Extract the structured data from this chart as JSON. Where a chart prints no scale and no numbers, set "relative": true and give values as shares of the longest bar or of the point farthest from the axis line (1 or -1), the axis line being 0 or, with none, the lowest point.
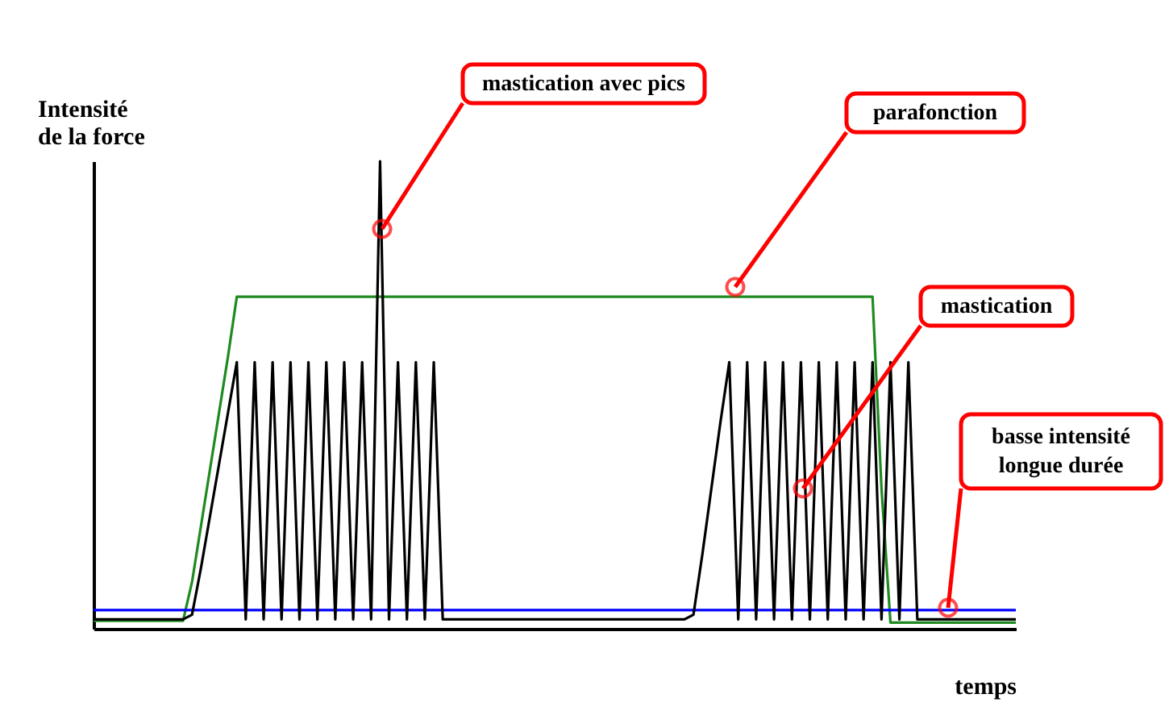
{
  "chart_data": {
    "type": "line",
    "relative": true,
    "xlabel": "temps",
    "ylabel": "Intensité de la force",
    "categories": [
      null,
      null,
      null,
      null,
      null,
      null,
      null,
      null,
      null,
      null,
      null,
      null,
      null,
      null,
      null,
      null,
      null,
      null,
      null,
      null,
      null,
      null,
      null,
      null,
      null,
      null,
      null,
      null,
      null,
      null,
      null,
      null,
      null,
      null,
      null,
      null,
      null,
      null,
      null,
      null,
      null,
      null,
      null,
      null,
      null,
      null,
      null,
      null,
      null,
      null,
      null,
      null,
      null,
      null,
      null,
      null,
      null,
      null,
      null,
      null,
      null,
      null,
      null,
      null,
      null,
      null,
      null,
      null,
      null,
      null,
      null,
      null,
      null,
      null,
      null,
      null,
      null,
      null,
      null,
      null,
      null,
      null,
      null,
      null,
      null,
      null,
      null,
      null,
      null,
      null,
      null,
      null,
      null,
      null,
      null,
      null,
      null,
      null,
      null,
      null,
      null,
      null,
      null,
      null
    ],
    "series": [
      {
        "color": "#1f8a1f",
        "values": [
          0.017,
          0.017,
          0.017,
          0.017,
          0.017,
          0.017,
          0.017,
          0.017,
          0.017,
          0.017,
          0.017,
          0.1,
          0.22,
          0.34,
          0.46,
          0.58,
          0.71,
          0.71,
          0.71,
          0.71,
          0.71,
          0.71,
          0.71,
          0.71,
          0.71,
          0.71,
          0.71,
          0.71,
          0.71,
          0.71,
          0.71,
          0.71,
          0.71,
          0.71,
          0.71,
          0.71,
          0.71,
          0.71,
          0.71,
          0.71,
          0.71,
          0.71,
          0.71,
          0.71,
          0.71,
          0.71,
          0.71,
          0.71,
          0.71,
          0.71,
          0.71,
          0.71,
          0.71,
          0.71,
          0.71,
          0.71,
          0.71,
          0.71,
          0.71,
          0.71,
          0.71,
          0.71,
          0.71,
          0.71,
          0.71,
          0.71,
          0.71,
          0.71,
          0.71,
          0.71,
          0.71,
          0.71,
          0.71,
          0.71,
          0.71,
          0.71,
          0.71,
          0.71,
          0.71,
          0.71,
          0.71,
          0.71,
          0.71,
          0.71,
          0.71,
          0.71,
          0.71,
          0.71,
          0.3,
          0.013,
          0.013,
          0.013,
          0.013,
          0.013,
          0.013,
          0.013,
          0.013,
          0.013,
          0.013,
          0.013,
          0.013,
          0.013,
          0.013,
          0.013
        ]
      },
      {
        "color": "#0000ff",
        "values": [
          0.04,
          0.04,
          0.04,
          0.04,
          0.04,
          0.04,
          0.04,
          0.04,
          0.04,
          0.04,
          0.04,
          0.04,
          0.04,
          0.04,
          0.04,
          0.04,
          0.04,
          0.04,
          0.04,
          0.04,
          0.04,
          0.04,
          0.04,
          0.04,
          0.04,
          0.04,
          0.04,
          0.04,
          0.04,
          0.04,
          0.04,
          0.04,
          0.04,
          0.04,
          0.04,
          0.04,
          0.04,
          0.04,
          0.04,
          0.04,
          0.04,
          0.04,
          0.04,
          0.04,
          0.04,
          0.04,
          0.04,
          0.04,
          0.04,
          0.04,
          0.04,
          0.04,
          0.04,
          0.04,
          0.04,
          0.04,
          0.04,
          0.04,
          0.04,
          0.04,
          0.04,
          0.04,
          0.04,
          0.04,
          0.04,
          0.04,
          0.04,
          0.04,
          0.04,
          0.04,
          0.04,
          0.04,
          0.04,
          0.04,
          0.04,
          0.04,
          0.04,
          0.04,
          0.04,
          0.04,
          0.04,
          0.04,
          0.04,
          0.04,
          0.04,
          0.04,
          0.04,
          0.04,
          0.04,
          0.04,
          0.04,
          0.04,
          0.04,
          0.04,
          0.04,
          0.04,
          0.04,
          0.04,
          0.04,
          0.04,
          0.04,
          0.04,
          0.04,
          0.04
        ]
      },
      {
        "color": "#000000",
        "values": [
          0.02,
          0.02,
          0.02,
          0.02,
          0.02,
          0.02,
          0.02,
          0.02,
          0.02,
          0.02,
          0.02,
          0.03,
          0.13,
          0.24,
          0.35,
          0.46,
          0.57,
          0.02,
          0.57,
          0.02,
          0.57,
          0.02,
          0.57,
          0.02,
          0.57,
          0.02,
          0.57,
          0.02,
          0.57,
          0.02,
          0.57,
          0.02,
          1.0,
          0.02,
          0.57,
          0.02,
          0.57,
          0.02,
          0.57,
          0.02,
          0.02,
          0.02,
          0.02,
          0.02,
          0.02,
          0.02,
          0.02,
          0.02,
          0.02,
          0.02,
          0.02,
          0.02,
          0.02,
          0.02,
          0.02,
          0.02,
          0.02,
          0.02,
          0.02,
          0.02,
          0.02,
          0.02,
          0.02,
          0.02,
          0.02,
          0.02,
          0.02,
          0.03,
          0.16,
          0.3,
          0.44,
          0.57,
          0.02,
          0.57,
          0.02,
          0.57,
          0.02,
          0.57,
          0.02,
          0.57,
          0.02,
          0.57,
          0.02,
          0.57,
          0.02,
          0.57,
          0.02,
          0.57,
          0.02,
          0.57,
          0.02,
          0.57,
          0.02,
          0.02,
          0.02,
          0.02,
          0.02,
          0.02,
          0.02,
          0.02,
          0.02,
          0.02,
          0.02,
          0.02
        ]
      }
    ],
    "annotations": [
      "mastication avec pics",
      "parafonction",
      "mastication",
      "basse intensité longue durée"
    ],
    "grid": false
  }
}
